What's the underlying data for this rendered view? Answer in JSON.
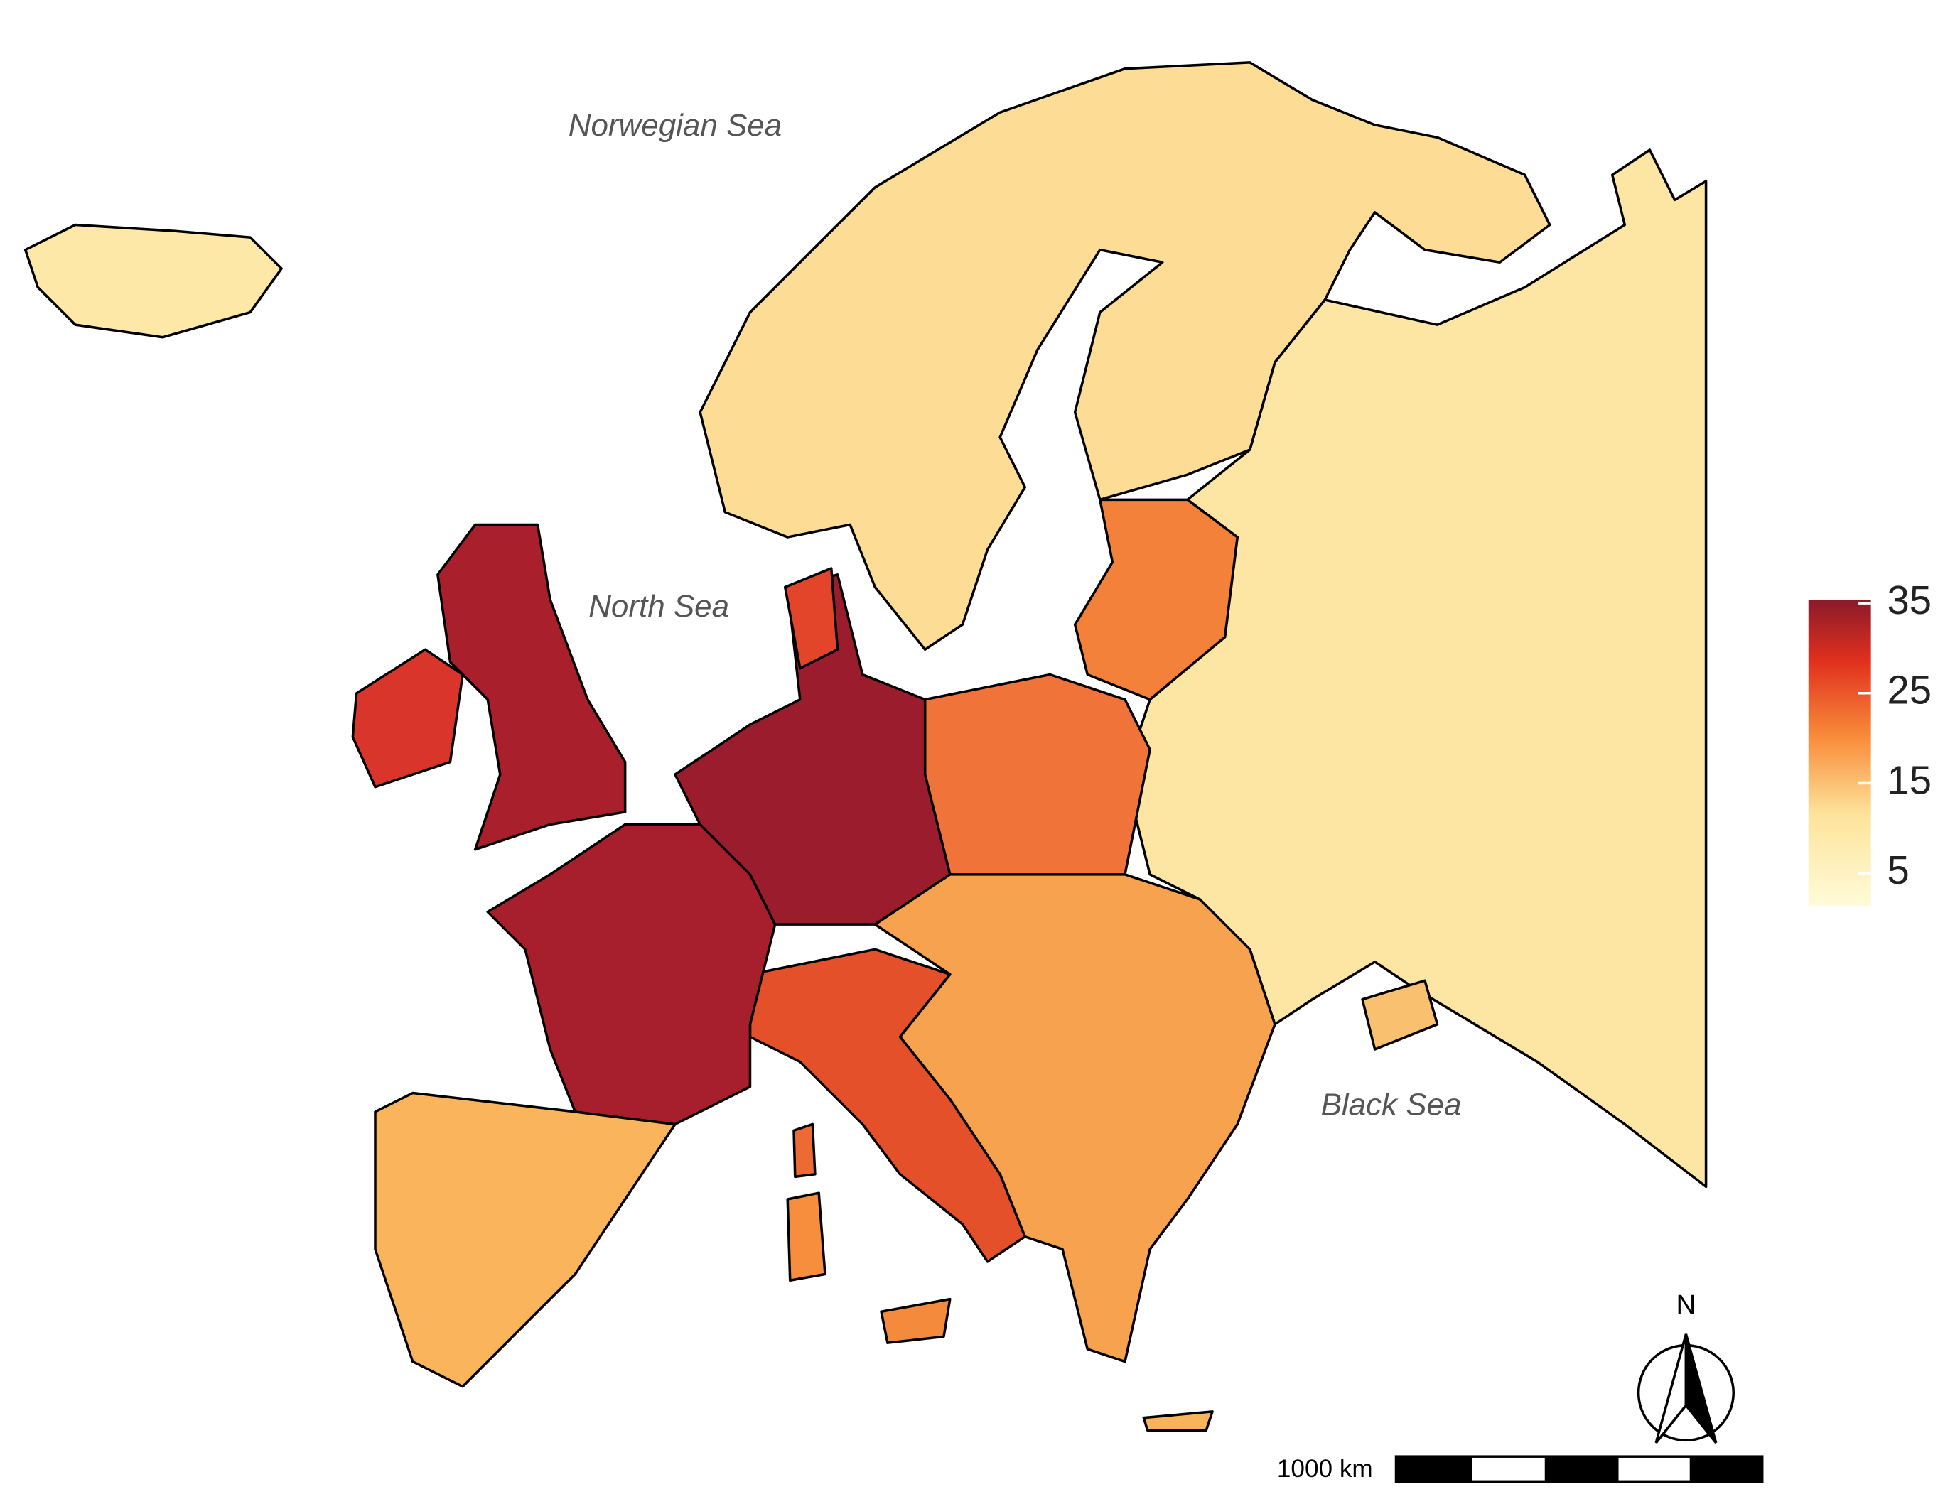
{
  "map": {
    "sea_labels": [
      "Norwegian Sea",
      "North Sea",
      "Black Sea"
    ],
    "legend": {
      "range": [
        1.4,
        35.4
      ],
      "ticks": [
        5,
        15,
        25,
        35
      ]
    },
    "north_arrow": "N",
    "scale_bar": "1000 km"
  }
}
